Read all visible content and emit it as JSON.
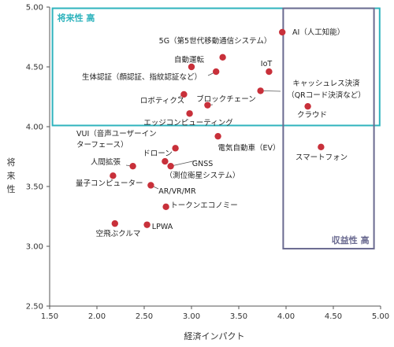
{
  "chart_data": {
    "type": "scatter",
    "xlabel": "経済インパクト",
    "ylabel": "将来性",
    "xlim": [
      1.5,
      5.0
    ],
    "ylim": [
      2.5,
      5.0
    ],
    "x_ticks": [
      "1.50",
      "2.00",
      "2.50",
      "3.00",
      "3.50",
      "4.00",
      "4.50",
      "5.00"
    ],
    "y_ticks": [
      "2.50",
      "3.00",
      "3.50",
      "4.00",
      "4.50",
      "5.00"
    ],
    "grid": false,
    "point_color": "#c8303a",
    "regions": [
      {
        "label": "将来性 高",
        "color": "#2fb3bd",
        "x_range": [
          1.53,
          4.99
        ],
        "y_range": [
          4.01,
          4.99
        ],
        "label_corner": "top-left"
      },
      {
        "label": "収益性 高",
        "color": "#6a6a90",
        "x_range": [
          3.97,
          4.93
        ],
        "y_range": [
          2.98,
          4.99
        ],
        "label_corner": "bottom-right"
      }
    ],
    "points": [
      {
        "label": "AI（人工知能）",
        "x": 3.96,
        "y": 4.79
      },
      {
        "label": "5G（第5世代移動通信システム）",
        "x": 3.33,
        "y": 4.58
      },
      {
        "label": "自動運転",
        "x": 3.0,
        "y": 4.5
      },
      {
        "label": "IoT",
        "x": 3.82,
        "y": 4.46
      },
      {
        "label": "生体認証（顔認証、指紋認証など）",
        "x": 3.26,
        "y": 4.46
      },
      {
        "label": "キャッシュレス決済",
        "x": 3.73,
        "y": 4.3
      },
      {
        "label": "ロボティクス",
        "x": 2.92,
        "y": 4.27
      },
      {
        "label": "ブロックチェーン",
        "x": 3.17,
        "y": 4.18
      },
      {
        "label": "クラウド",
        "x": 4.23,
        "y": 4.17
      },
      {
        "label": "エッジコンピューティング",
        "x": 2.98,
        "y": 4.11
      },
      {
        "label": "VUI（音声ユーザーインターフェース）",
        "x": 2.83,
        "y": 3.82
      },
      {
        "label": "電気自動車（EV）",
        "x": 3.28,
        "y": 3.92
      },
      {
        "label": "スマートフォン",
        "x": 4.37,
        "y": 3.83
      },
      {
        "label": "ドローン",
        "x": 2.72,
        "y": 3.71
      },
      {
        "label": "GNSS（測位衛星システム）",
        "x": 2.78,
        "y": 3.67
      },
      {
        "label": "人間拡張",
        "x": 2.38,
        "y": 3.67
      },
      {
        "label": "量子コンピューター",
        "x": 2.17,
        "y": 3.59
      },
      {
        "label": "AR/VR/MR",
        "x": 2.57,
        "y": 3.51
      },
      {
        "label": "トークンエコノミー",
        "x": 2.73,
        "y": 3.33
      },
      {
        "label": "空飛ぶクルマ",
        "x": 2.19,
        "y": 3.19
      },
      {
        "label": "LPWA",
        "x": 2.53,
        "y": 3.18
      }
    ],
    "annotations": [
      {
        "point": "AI（人工知能）",
        "lines": [
          "AI（人工知能）"
        ]
      },
      {
        "point": "5G（第5世代移動通信システム）",
        "lines": [
          "5G（第5世代移動通信システム）"
        ]
      },
      {
        "point": "自動運転",
        "lines": [
          "自動運転"
        ]
      },
      {
        "point": "IoT",
        "lines": [
          "IoT"
        ]
      },
      {
        "point": "生体認証（顔認証、指紋認証など）",
        "lines": [
          "生体認証（顔認証、指紋認証など）"
        ]
      },
      {
        "point": "キャッシュレス決済",
        "lines": [
          "キャッシュレス決済",
          "（QRコード決済など）"
        ]
      },
      {
        "point": "ロボティクス",
        "lines": [
          "ロボティクス"
        ]
      },
      {
        "point": "ブロックチェーン",
        "lines": [
          "ブロックチェーン"
        ]
      },
      {
        "point": "クラウド",
        "lines": [
          "クラウド"
        ]
      },
      {
        "point": "エッジコンピューティング",
        "lines": [
          "エッジコンピューティング"
        ]
      },
      {
        "point": "VUI（音声ユーザーインターフェース）",
        "lines": [
          "VUI（音声ユーザーイン",
          "ターフェース）"
        ]
      },
      {
        "point": "電気自動車（EV）",
        "lines": [
          "電気自動車（EV）"
        ]
      },
      {
        "point": "スマートフォン",
        "lines": [
          "スマートフォン"
        ]
      },
      {
        "point": "ドローン",
        "lines": [
          "ドローン"
        ]
      },
      {
        "point": "GNSS（測位衛星システム）",
        "lines": [
          "GNSS",
          "（測位衛星システム）"
        ]
      },
      {
        "point": "人間拡張",
        "lines": [
          "人間拡張"
        ]
      },
      {
        "point": "量子コンピューター",
        "lines": [
          "量子コンピューター"
        ]
      },
      {
        "point": "AR/VR/MR",
        "lines": [
          "AR/VR/MR"
        ]
      },
      {
        "point": "トークンエコノミー",
        "lines": [
          "トークンエコノミー"
        ]
      },
      {
        "point": "空飛ぶクルマ",
        "lines": [
          "空飛ぶクルマ"
        ]
      },
      {
        "point": "LPWA",
        "lines": [
          "LPWA"
        ]
      }
    ]
  }
}
